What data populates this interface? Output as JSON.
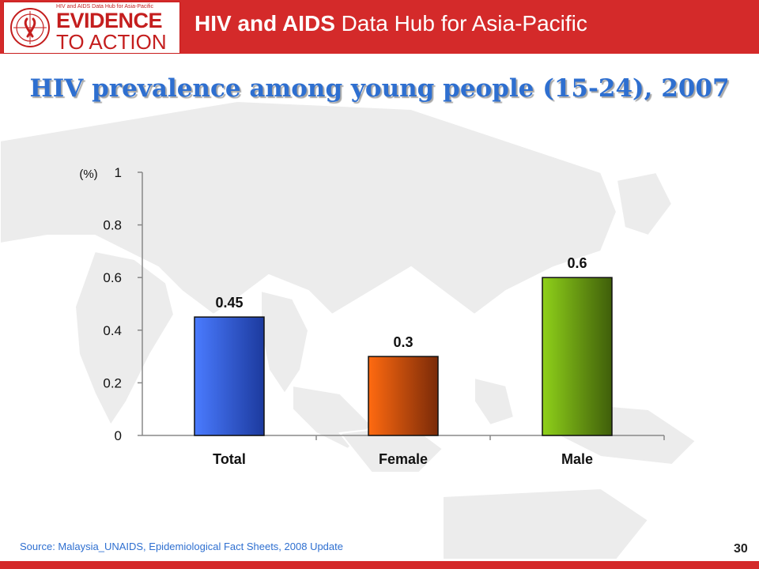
{
  "header": {
    "logo": {
      "small_text": "HIV and AIDS Data Hub for Asia-Pacific",
      "line1": "EVIDENCE",
      "line2": "TO ACTION"
    },
    "title_bold": "HIV and AIDS",
    "title_rest": " Data Hub for Asia-Pacific",
    "colors": {
      "bar": "#d42a2a",
      "text": "#ffffff"
    }
  },
  "slide": {
    "title": "HIV prevalence among young people (15-24), 2007",
    "source": "Source: Malaysia_UNAIDS, Epidemiological Fact Sheets, 2008 Update",
    "page_number": "30"
  },
  "chart_data": {
    "type": "bar",
    "title": "HIV prevalence among young people (15-24), 2007",
    "ylabel": "(%)",
    "xlabel": "",
    "categories": [
      "Total",
      "Female",
      "Male"
    ],
    "values": [
      0.45,
      0.3,
      0.6
    ],
    "data_labels": [
      "0.45",
      "0.3",
      "0.6"
    ],
    "ylim": [
      0,
      1
    ],
    "yticks": [
      0,
      0.2,
      0.4,
      0.6,
      0.8,
      1
    ],
    "ytick_labels": [
      "0",
      "0.2",
      "0.4",
      "0.6",
      "0.8",
      "1"
    ],
    "grid": false,
    "legend": "none",
    "bar_colors": [
      {
        "light": "#4a7bff",
        "dark": "#1c3a9e"
      },
      {
        "light": "#ff6a10",
        "dark": "#7a2a08"
      },
      {
        "light": "#8fd11a",
        "dark": "#3f5e0a"
      }
    ]
  }
}
